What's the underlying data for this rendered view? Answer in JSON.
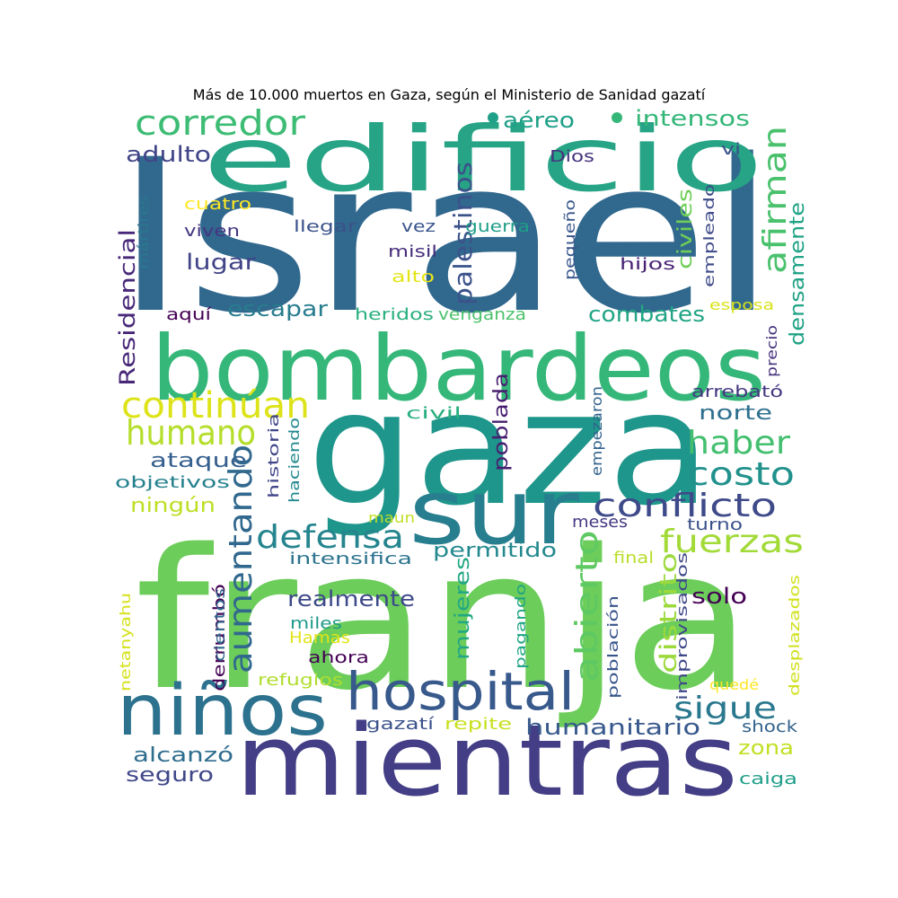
{
  "chart_data": {
    "type": "wordcloud",
    "title": "Más de 10.000 muertos en Gaza, según el Ministerio de Sanidad gazatí",
    "words": [
      {
        "text": "Israel",
        "color": "#31688e"
      },
      {
        "text": "edificio",
        "color": "#26a485"
      },
      {
        "text": "franja",
        "color": "#6ccd5a"
      },
      {
        "text": "gaza",
        "color": "#1f968b"
      },
      {
        "text": "bombardeos",
        "color": "#35b779"
      },
      {
        "text": "mientras",
        "color": "#433e85"
      },
      {
        "text": "sur",
        "color": "#277e8e"
      },
      {
        "text": "niños",
        "color": "#2c728e"
      },
      {
        "text": "hospital",
        "color": "#38598c"
      },
      {
        "text": "corredor",
        "color": "#3dbc74"
      },
      {
        "text": "afirman",
        "color": "#4ac16d"
      },
      {
        "text": "continúan",
        "color": "#dde318"
      },
      {
        "text": "humano",
        "color": "#b5de2b"
      },
      {
        "text": "haber",
        "color": "#44bf70"
      },
      {
        "text": "costo",
        "color": "#21918c"
      },
      {
        "text": "conflicto",
        "color": "#3e4a89"
      },
      {
        "text": "aumentando",
        "color": "#31688e"
      },
      {
        "text": "defensa",
        "color": "#25858e"
      },
      {
        "text": "fuerzas",
        "color": "#a2da37"
      },
      {
        "text": "abierto",
        "color": "#5ec962"
      },
      {
        "text": "sigue",
        "color": "#2a788e"
      },
      {
        "text": "palestinos",
        "color": "#3b528b"
      },
      {
        "text": "Residencial",
        "color": "#482878"
      },
      {
        "text": "densamente",
        "color": "#20a386"
      },
      {
        "text": "civiles",
        "color": "#6ece58"
      },
      {
        "text": "distrito",
        "color": "#9bd93c"
      },
      {
        "text": "humanitario",
        "color": "#38598c"
      },
      {
        "text": "mujeres",
        "color": "#22a884"
      },
      {
        "text": "intensos",
        "color": "#35b779"
      },
      {
        "text": "aéreo",
        "color": "#1fa088"
      },
      {
        "text": "adulto",
        "color": "#414487"
      },
      {
        "text": "lugar",
        "color": "#414487"
      },
      {
        "text": "escapar",
        "color": "#287c8e"
      },
      {
        "text": "combates",
        "color": "#21a585"
      },
      {
        "text": "norte",
        "color": "#2d708e"
      },
      {
        "text": "poblada",
        "color": "#481f70"
      },
      {
        "text": "ataque",
        "color": "#355f8d"
      },
      {
        "text": "ningún",
        "color": "#bddf26"
      },
      {
        "text": "permitido",
        "color": "#23898e"
      },
      {
        "text": "realmente",
        "color": "#3e4989"
      },
      {
        "text": "solo",
        "color": "#440154"
      },
      {
        "text": "zona",
        "color": "#c2df23"
      },
      {
        "text": "alcanzó",
        "color": "#2e6d8e"
      },
      {
        "text": "seguro",
        "color": "#3f4788"
      },
      {
        "text": "Dios",
        "color": "#46327e"
      },
      {
        "text": "vi",
        "color": "#3b528b"
      },
      {
        "text": "cuatro",
        "color": "#fde725"
      },
      {
        "text": "mártires",
        "color": "#2a788e"
      },
      {
        "text": "viven",
        "color": "#453581"
      },
      {
        "text": "llegar",
        "color": "#3b528b"
      },
      {
        "text": "vez",
        "color": "#3a548c"
      },
      {
        "text": "guerra",
        "color": "#1f9e89"
      },
      {
        "text": "misil",
        "color": "#472d7b"
      },
      {
        "text": "pequeño",
        "color": "#39568c"
      },
      {
        "text": "empleado",
        "color": "#3e4a89"
      },
      {
        "text": "hijos",
        "color": "#482475"
      },
      {
        "text": "alto",
        "color": "#e5e419"
      },
      {
        "text": "esposa",
        "color": "#dae319"
      },
      {
        "text": "aquí",
        "color": "#440154"
      },
      {
        "text": "heridos",
        "color": "#2ab07f"
      },
      {
        "text": "venganza",
        "color": "#4cc26c"
      },
      {
        "text": "precio",
        "color": "#46337f"
      },
      {
        "text": "arrebató",
        "color": "#453781"
      },
      {
        "text": "civil",
        "color": "#29af7f"
      },
      {
        "text": "historia",
        "color": "#404688"
      },
      {
        "text": "haciendo",
        "color": "#23898e"
      },
      {
        "text": "empezaron",
        "color": "#33638d"
      },
      {
        "text": "objetivos",
        "color": "#26818e"
      },
      {
        "text": "maun",
        "color": "#c0df25"
      },
      {
        "text": "meses",
        "color": "#443a83"
      },
      {
        "text": "turno",
        "color": "#3b528b"
      },
      {
        "text": "intensifica",
        "color": "#2c738e"
      },
      {
        "text": "final",
        "color": "#b8de29"
      },
      {
        "text": "improvisados",
        "color": "#3f4889"
      },
      {
        "text": "desplazados",
        "color": "#d0e11c"
      },
      {
        "text": "netanyahu",
        "color": "#d5e21a"
      },
      {
        "text": "derrumbó",
        "color": "#440154"
      },
      {
        "text": "cientos",
        "color": "#31688e"
      },
      {
        "text": "miles",
        "color": "#1f9a8a"
      },
      {
        "text": "Hamas",
        "color": "#e2e418"
      },
      {
        "text": "ahora",
        "color": "#440154"
      },
      {
        "text": "refugios",
        "color": "#b0dd2f"
      },
      {
        "text": "pagando",
        "color": "#20a486"
      },
      {
        "text": "población",
        "color": "#39568c"
      },
      {
        "text": "quedé",
        "color": "#fde725"
      },
      {
        "text": "shock",
        "color": "#33638d"
      },
      {
        "text": "gazatí",
        "color": "#3b528b"
      },
      {
        "text": "repite",
        "color": "#c8e020"
      },
      {
        "text": "caiga",
        "color": "#1f9e89"
      }
    ]
  }
}
